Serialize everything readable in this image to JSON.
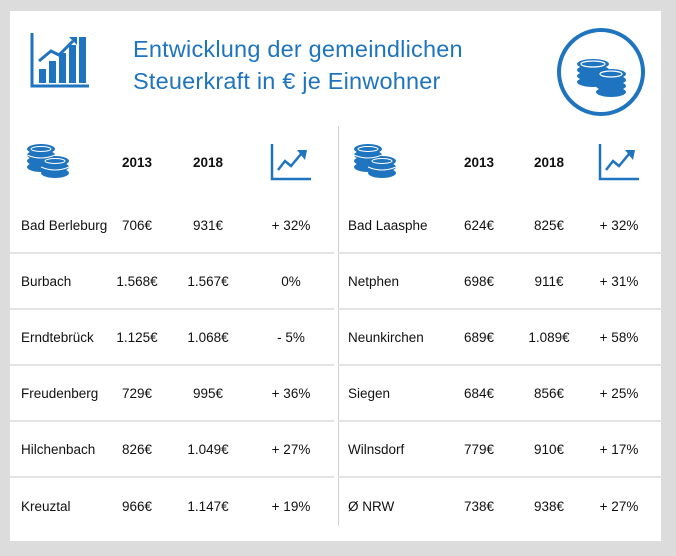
{
  "header": {
    "title_line1": "Entwicklung der gemeindlichen",
    "title_line2": "Steuerkraft in € je Einwohner"
  },
  "columns": {
    "year1": "2013",
    "year2": "2018"
  },
  "left_rows": [
    {
      "name": "Bad Berleburg",
      "v2013": "706€",
      "v2018": "931€",
      "change": "+ 32%"
    },
    {
      "name": "Burbach",
      "v2013": "1.568€",
      "v2018": "1.567€",
      "change": "0%"
    },
    {
      "name": "Erndtebrück",
      "v2013": "1.125€",
      "v2018": "1.068€",
      "change": "- 5%"
    },
    {
      "name": "Freudenberg",
      "v2013": "729€",
      "v2018": "995€",
      "change": "+ 36%"
    },
    {
      "name": "Hilchenbach",
      "v2013": "826€",
      "v2018": "1.049€",
      "change": "+ 27%"
    },
    {
      "name": "Kreuztal",
      "v2013": "966€",
      "v2018": "1.147€",
      "change": "+ 19%"
    }
  ],
  "right_rows": [
    {
      "name": "Bad Laasphe",
      "v2013": "624€",
      "v2018": "825€",
      "change": "+ 32%"
    },
    {
      "name": "Netphen",
      "v2013": "698€",
      "v2018": "911€",
      "change": "+ 31%"
    },
    {
      "name": "Neunkirchen",
      "v2013": "689€",
      "v2018": "1.089€",
      "change": "+ 58%"
    },
    {
      "name": "Siegen",
      "v2013": "684€",
      "v2018": "856€",
      "change": "+ 25%"
    },
    {
      "name": "Wilnsdorf",
      "v2013": "779€",
      "v2018": "910€",
      "change": "+ 17%"
    },
    {
      "name": "Ø NRW",
      "v2013": "738€",
      "v2018": "938€",
      "change": "+ 27%"
    }
  ],
  "icons": {
    "header_chart": "bar-chart-growth-icon",
    "header_coins": "coins-circle-icon",
    "column_coins": "coins-icon",
    "column_trend": "trend-up-icon"
  },
  "colors": {
    "accent": "#1f74c0",
    "text": "#111111",
    "divider": "#e3e3e3",
    "background": "#dcdcdc"
  }
}
